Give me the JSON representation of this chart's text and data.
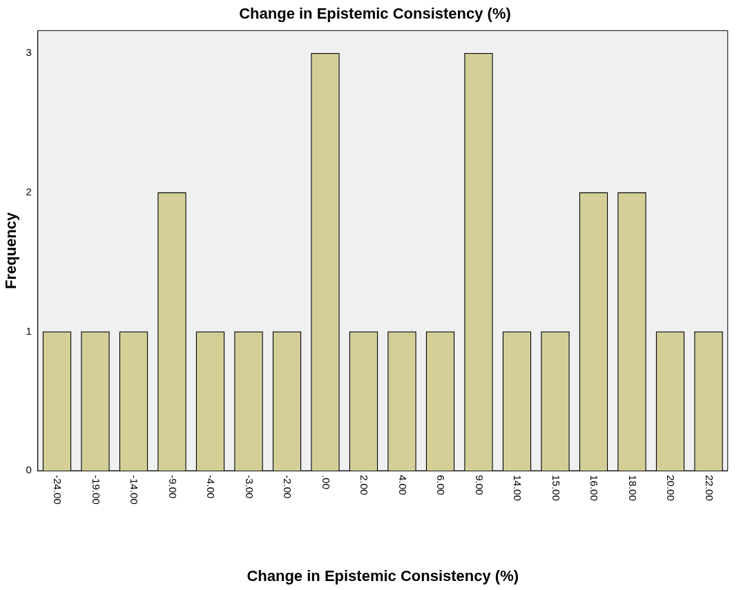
{
  "chart_data": {
    "type": "bar",
    "title": "Change in Epistemic Consistency (%)",
    "xlabel": "Change in Epistemic Consistency (%)",
    "ylabel": "Frequency",
    "categories": [
      "-24.00",
      "-19.00",
      "-14.00",
      "-9.00",
      "-4.00",
      "-3.00",
      "-2.00",
      ".00",
      "2.00",
      "4.00",
      "6.00",
      "9.00",
      "14.00",
      "15.00",
      "16.00",
      "18.00",
      "20.00",
      "22.00"
    ],
    "values": [
      1,
      1,
      1,
      2,
      1,
      1,
      1,
      3,
      1,
      1,
      1,
      3,
      1,
      1,
      2,
      2,
      1,
      1
    ],
    "color": "#d3cf97",
    "ylim": [
      0,
      3.16
    ],
    "yticks": [
      0,
      1,
      2,
      3
    ],
    "grid": false,
    "legend": false
  }
}
